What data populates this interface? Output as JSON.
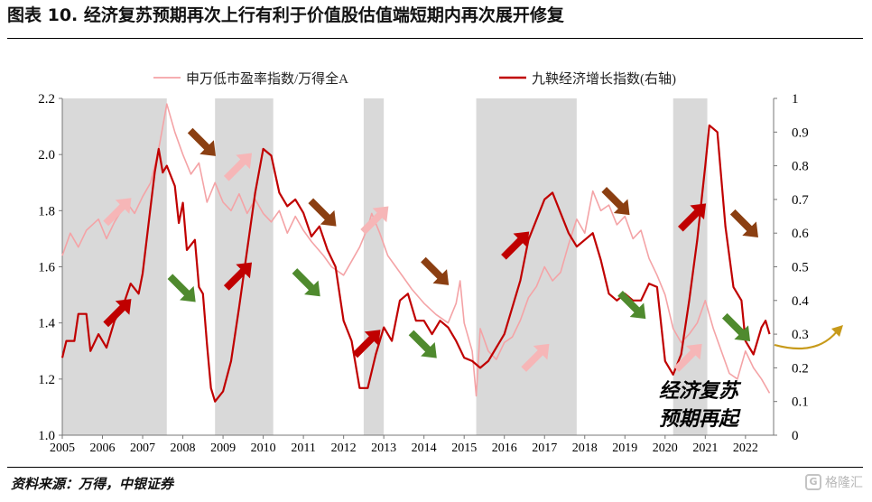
{
  "title": "图表 10. 经济复苏预期再次上行有利于价值股估值端短期内再次展开修复",
  "source": "资料来源：万得，中银证券",
  "watermark": "格隆汇",
  "annotation_lines": [
    "经济复苏",
    "预期再起"
  ],
  "colors": {
    "series_left": "#f4a3a6",
    "series_right": "#c00000",
    "shade": "#d9d9d9",
    "arrow_up": "#c00000",
    "arrow_up_light": "#f6b6b7",
    "arrow_down_brown": "#8b3f12",
    "arrow_down_green": "#4f8a2e",
    "curve_arrow": "#c79a1a"
  },
  "chart_data": {
    "type": "line",
    "x_tick_labels": [
      "2005",
      "2006",
      "2007",
      "2008",
      "2009",
      "2010",
      "2011",
      "2012",
      "2013",
      "2014",
      "2015",
      "2016",
      "2017",
      "2018",
      "2019",
      "2020",
      "2021",
      "2022"
    ],
    "xlim": [
      2005.0,
      2022.7
    ],
    "left_axis": {
      "ylim": [
        1.0,
        2.2
      ],
      "ticks": [
        "1.0",
        "1.2",
        "1.4",
        "1.6",
        "1.8",
        "2.0",
        "2.2"
      ]
    },
    "right_axis": {
      "ylim": [
        0,
        1
      ],
      "ticks": [
        "0",
        "0.1",
        "0.2",
        "0.3",
        "0.4",
        "0.5",
        "0.6",
        "0.7",
        "0.8",
        "0.9",
        "1"
      ]
    },
    "legend_position": "top",
    "shaded_periods": [
      [
        2005.0,
        2007.6
      ],
      [
        2008.8,
        2010.25
      ],
      [
        2012.5,
        2013.0
      ],
      [
        2015.3,
        2017.8
      ],
      [
        2020.2,
        2021.05
      ]
    ],
    "series": [
      {
        "name": "申万低市盈率指数/万得全A",
        "axis": "left",
        "color": "#f4a3a6",
        "points": [
          [
            2005.0,
            1.64
          ],
          [
            2005.2,
            1.72
          ],
          [
            2005.4,
            1.67
          ],
          [
            2005.6,
            1.73
          ],
          [
            2005.9,
            1.77
          ],
          [
            2006.1,
            1.7
          ],
          [
            2006.3,
            1.76
          ],
          [
            2006.6,
            1.83
          ],
          [
            2006.8,
            1.79
          ],
          [
            2007.0,
            1.85
          ],
          [
            2007.2,
            1.9
          ],
          [
            2007.4,
            2.02
          ],
          [
            2007.5,
            2.1
          ],
          [
            2007.6,
            2.18
          ],
          [
            2007.8,
            2.08
          ],
          [
            2008.0,
            2.0
          ],
          [
            2008.2,
            1.93
          ],
          [
            2008.4,
            1.97
          ],
          [
            2008.6,
            1.83
          ],
          [
            2008.8,
            1.9
          ],
          [
            2009.0,
            1.83
          ],
          [
            2009.2,
            1.8
          ],
          [
            2009.4,
            1.86
          ],
          [
            2009.6,
            1.79
          ],
          [
            2009.8,
            1.84
          ],
          [
            2010.0,
            1.79
          ],
          [
            2010.2,
            1.76
          ],
          [
            2010.4,
            1.8
          ],
          [
            2010.6,
            1.72
          ],
          [
            2010.8,
            1.78
          ],
          [
            2011.0,
            1.73
          ],
          [
            2011.2,
            1.69
          ],
          [
            2011.5,
            1.64
          ],
          [
            2011.7,
            1.6
          ],
          [
            2012.0,
            1.57
          ],
          [
            2012.2,
            1.62
          ],
          [
            2012.4,
            1.67
          ],
          [
            2012.6,
            1.74
          ],
          [
            2012.7,
            1.79
          ],
          [
            2012.9,
            1.72
          ],
          [
            2013.1,
            1.64
          ],
          [
            2013.3,
            1.6
          ],
          [
            2013.5,
            1.56
          ],
          [
            2013.7,
            1.52
          ],
          [
            2014.0,
            1.47
          ],
          [
            2014.3,
            1.43
          ],
          [
            2014.6,
            1.4
          ],
          [
            2014.8,
            1.47
          ],
          [
            2014.9,
            1.55
          ],
          [
            2015.0,
            1.4
          ],
          [
            2015.2,
            1.3
          ],
          [
            2015.3,
            1.14
          ],
          [
            2015.4,
            1.38
          ],
          [
            2015.6,
            1.3
          ],
          [
            2015.8,
            1.27
          ],
          [
            2016.0,
            1.33
          ],
          [
            2016.2,
            1.35
          ],
          [
            2016.4,
            1.41
          ],
          [
            2016.6,
            1.49
          ],
          [
            2016.8,
            1.53
          ],
          [
            2017.0,
            1.6
          ],
          [
            2017.2,
            1.55
          ],
          [
            2017.4,
            1.58
          ],
          [
            2017.6,
            1.68
          ],
          [
            2017.8,
            1.77
          ],
          [
            2018.0,
            1.72
          ],
          [
            2018.2,
            1.87
          ],
          [
            2018.4,
            1.8
          ],
          [
            2018.6,
            1.82
          ],
          [
            2018.8,
            1.75
          ],
          [
            2019.0,
            1.78
          ],
          [
            2019.2,
            1.7
          ],
          [
            2019.4,
            1.73
          ],
          [
            2019.6,
            1.63
          ],
          [
            2019.8,
            1.57
          ],
          [
            2020.0,
            1.5
          ],
          [
            2020.2,
            1.38
          ],
          [
            2020.4,
            1.33
          ],
          [
            2020.6,
            1.36
          ],
          [
            2020.8,
            1.4
          ],
          [
            2021.0,
            1.48
          ],
          [
            2021.2,
            1.38
          ],
          [
            2021.4,
            1.3
          ],
          [
            2021.6,
            1.22
          ],
          [
            2021.8,
            1.2
          ],
          [
            2022.0,
            1.3
          ],
          [
            2022.2,
            1.24
          ],
          [
            2022.4,
            1.2
          ],
          [
            2022.6,
            1.15
          ]
        ]
      },
      {
        "name": "九鞅经济增长指数(右轴)",
        "axis": "right",
        "color": "#c00000",
        "points": [
          [
            2005.0,
            0.23
          ],
          [
            2005.1,
            0.28
          ],
          [
            2005.3,
            0.28
          ],
          [
            2005.4,
            0.36
          ],
          [
            2005.6,
            0.36
          ],
          [
            2005.7,
            0.25
          ],
          [
            2005.9,
            0.3
          ],
          [
            2006.1,
            0.26
          ],
          [
            2006.3,
            0.34
          ],
          [
            2006.5,
            0.38
          ],
          [
            2006.7,
            0.45
          ],
          [
            2006.9,
            0.42
          ],
          [
            2007.0,
            0.48
          ],
          [
            2007.2,
            0.68
          ],
          [
            2007.3,
            0.78
          ],
          [
            2007.4,
            0.85
          ],
          [
            2007.5,
            0.78
          ],
          [
            2007.6,
            0.8
          ],
          [
            2007.8,
            0.74
          ],
          [
            2007.9,
            0.63
          ],
          [
            2008.0,
            0.69
          ],
          [
            2008.1,
            0.55
          ],
          [
            2008.3,
            0.58
          ],
          [
            2008.4,
            0.44
          ],
          [
            2008.5,
            0.42
          ],
          [
            2008.6,
            0.27
          ],
          [
            2008.7,
            0.14
          ],
          [
            2008.8,
            0.1
          ],
          [
            2009.0,
            0.13
          ],
          [
            2009.2,
            0.22
          ],
          [
            2009.4,
            0.38
          ],
          [
            2009.6,
            0.55
          ],
          [
            2009.8,
            0.72
          ],
          [
            2010.0,
            0.85
          ],
          [
            2010.2,
            0.83
          ],
          [
            2010.4,
            0.72
          ],
          [
            2010.6,
            0.68
          ],
          [
            2010.8,
            0.7
          ],
          [
            2011.0,
            0.66
          ],
          [
            2011.2,
            0.59
          ],
          [
            2011.4,
            0.62
          ],
          [
            2011.6,
            0.55
          ],
          [
            2011.8,
            0.5
          ],
          [
            2012.0,
            0.34
          ],
          [
            2012.2,
            0.28
          ],
          [
            2012.4,
            0.14
          ],
          [
            2012.6,
            0.14
          ],
          [
            2012.8,
            0.24
          ],
          [
            2013.0,
            0.32
          ],
          [
            2013.2,
            0.28
          ],
          [
            2013.4,
            0.4
          ],
          [
            2013.6,
            0.42
          ],
          [
            2013.8,
            0.34
          ],
          [
            2014.0,
            0.34
          ],
          [
            2014.2,
            0.3
          ],
          [
            2014.4,
            0.34
          ],
          [
            2014.6,
            0.32
          ],
          [
            2014.8,
            0.28
          ],
          [
            2015.0,
            0.23
          ],
          [
            2015.2,
            0.22
          ],
          [
            2015.4,
            0.2
          ],
          [
            2015.6,
            0.22
          ],
          [
            2015.8,
            0.26
          ],
          [
            2016.0,
            0.3
          ],
          [
            2016.2,
            0.38
          ],
          [
            2016.4,
            0.46
          ],
          [
            2016.6,
            0.58
          ],
          [
            2016.8,
            0.64
          ],
          [
            2017.0,
            0.7
          ],
          [
            2017.2,
            0.72
          ],
          [
            2017.4,
            0.66
          ],
          [
            2017.6,
            0.6
          ],
          [
            2017.8,
            0.56
          ],
          [
            2018.0,
            0.58
          ],
          [
            2018.2,
            0.6
          ],
          [
            2018.4,
            0.52
          ],
          [
            2018.6,
            0.42
          ],
          [
            2018.8,
            0.4
          ],
          [
            2019.0,
            0.42
          ],
          [
            2019.2,
            0.4
          ],
          [
            2019.4,
            0.4
          ],
          [
            2019.6,
            0.45
          ],
          [
            2019.8,
            0.44
          ],
          [
            2020.0,
            0.22
          ],
          [
            2020.2,
            0.18
          ],
          [
            2020.4,
            0.24
          ],
          [
            2020.6,
            0.4
          ],
          [
            2020.8,
            0.58
          ],
          [
            2021.0,
            0.8
          ],
          [
            2021.1,
            0.92
          ],
          [
            2021.3,
            0.9
          ],
          [
            2021.5,
            0.62
          ],
          [
            2021.7,
            0.44
          ],
          [
            2021.9,
            0.4
          ],
          [
            2022.0,
            0.28
          ],
          [
            2022.2,
            0.24
          ],
          [
            2022.4,
            0.32
          ],
          [
            2022.5,
            0.34
          ],
          [
            2022.6,
            0.3
          ]
        ]
      }
    ],
    "arrows": [
      {
        "dir": "up",
        "style": "light",
        "x": 2006.4,
        "y_left": 1.8
      },
      {
        "dir": "up",
        "style": "dark",
        "x": 2006.4,
        "y_left": 1.44
      },
      {
        "dir": "down",
        "style": "green",
        "x": 2008.0,
        "y_left": 1.52
      },
      {
        "dir": "down",
        "style": "brown",
        "x": 2008.5,
        "y_left": 2.04
      },
      {
        "dir": "up",
        "style": "light",
        "x": 2009.4,
        "y_left": 1.96
      },
      {
        "dir": "up",
        "style": "dark",
        "x": 2009.4,
        "y_left": 1.57
      },
      {
        "dir": "down",
        "style": "green",
        "x": 2011.1,
        "y_left": 1.54
      },
      {
        "dir": "down",
        "style": "brown",
        "x": 2011.5,
        "y_left": 1.79
      },
      {
        "dir": "up",
        "style": "light",
        "x": 2012.8,
        "y_left": 1.77
      },
      {
        "dir": "up",
        "style": "dark",
        "x": 2012.6,
        "y_left": 1.33
      },
      {
        "dir": "down",
        "style": "green",
        "x": 2014.0,
        "y_left": 1.32
      },
      {
        "dir": "down",
        "style": "brown",
        "x": 2014.3,
        "y_left": 1.58
      },
      {
        "dir": "up",
        "style": "dark",
        "x": 2016.3,
        "y_left": 1.68
      },
      {
        "dir": "up",
        "style": "light",
        "x": 2016.8,
        "y_left": 1.28
      },
      {
        "dir": "down",
        "style": "brown",
        "x": 2018.8,
        "y_left": 1.83
      },
      {
        "dir": "down",
        "style": "green",
        "x": 2019.2,
        "y_left": 1.46
      },
      {
        "dir": "up",
        "style": "dark",
        "x": 2020.7,
        "y_left": 1.78
      },
      {
        "dir": "up",
        "style": "light",
        "x": 2020.6,
        "y_left": 1.28
      },
      {
        "dir": "down",
        "style": "brown",
        "x": 2022.0,
        "y_left": 1.75
      },
      {
        "dir": "down",
        "style": "green",
        "x": 2021.8,
        "y_left": 1.38
      }
    ]
  }
}
